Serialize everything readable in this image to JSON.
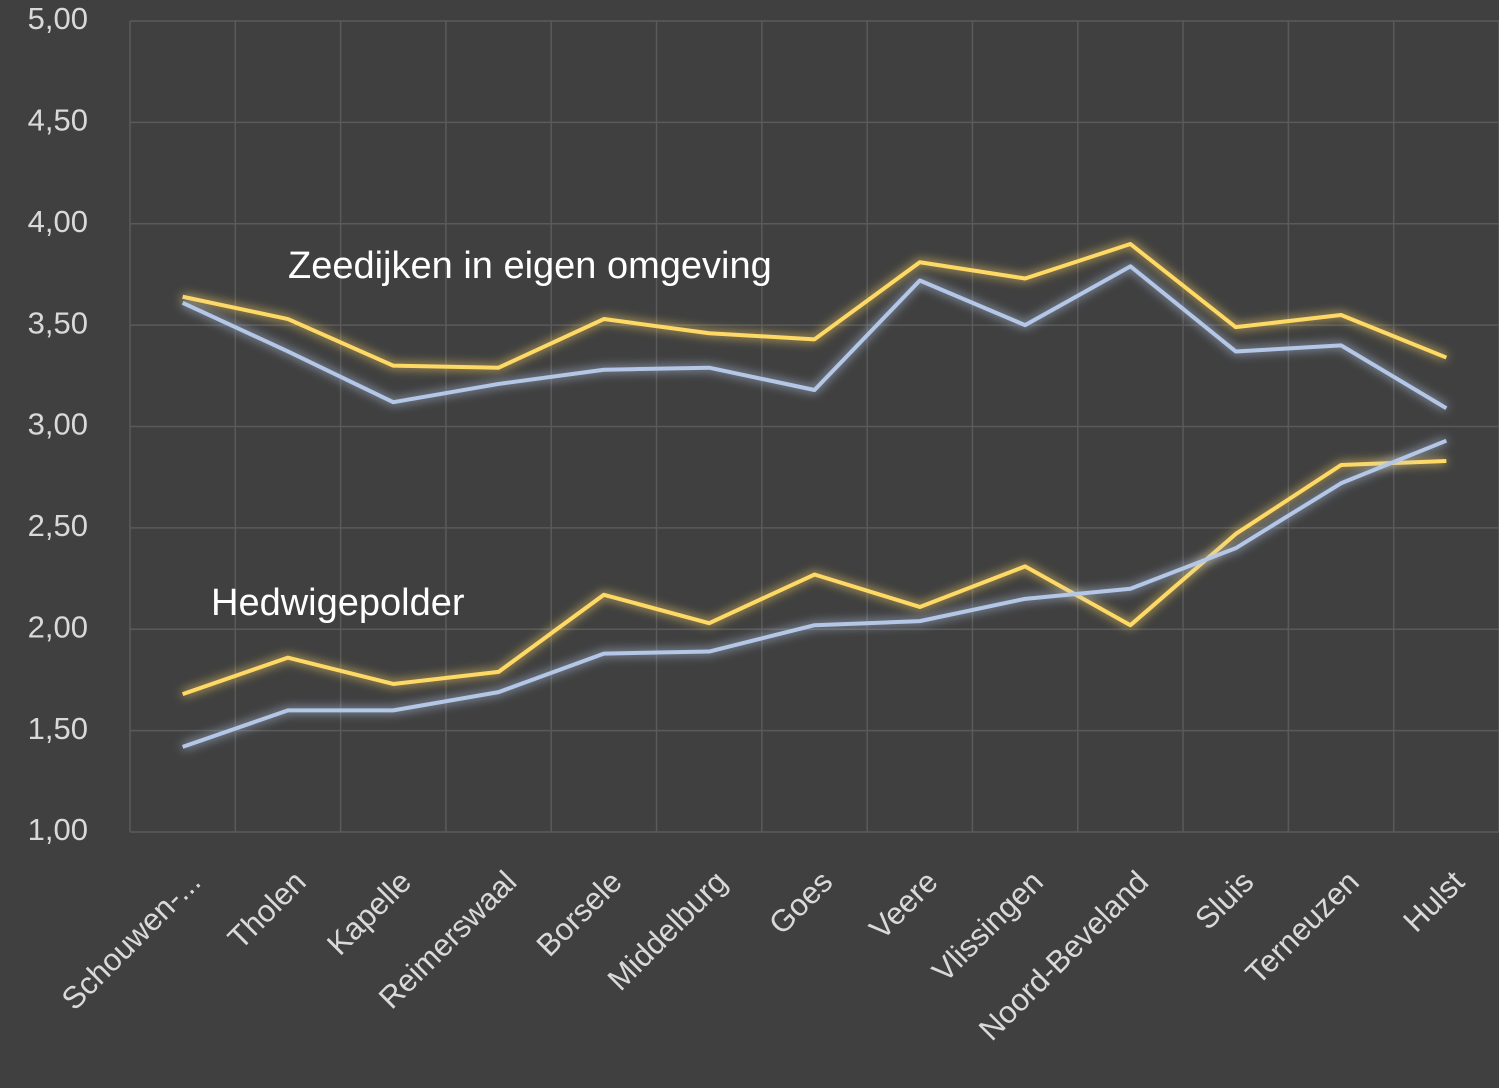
{
  "chart_data": {
    "type": "line",
    "categories": [
      "Schouwen-...",
      "Tholen",
      "Kapelle",
      "Reimerswaal",
      "Borsele",
      "Middelburg",
      "Goes",
      "Veere",
      "Vlissingen",
      "Noord-Beveland",
      "Sluis",
      "Terneuzen",
      "Hulst"
    ],
    "series": [
      {
        "color": "#ffd966",
        "values": [
          3.64,
          3.53,
          3.3,
          3.29,
          3.53,
          3.46,
          3.43,
          3.81,
          3.73,
          3.9,
          3.49,
          3.55,
          3.34
        ]
      },
      {
        "color": "#b4c7e7",
        "values": [
          3.61,
          3.37,
          3.12,
          3.21,
          3.28,
          3.29,
          3.18,
          3.72,
          3.5,
          3.79,
          3.37,
          3.4,
          3.09
        ]
      },
      {
        "color": "#ffd966",
        "values": [
          1.68,
          1.86,
          1.73,
          1.79,
          2.17,
          2.03,
          2.27,
          2.11,
          2.31,
          2.02,
          2.47,
          2.81,
          2.83
        ]
      },
      {
        "color": "#b4c7e7",
        "values": [
          1.42,
          1.6,
          1.6,
          1.69,
          1.88,
          1.89,
          2.02,
          2.04,
          2.15,
          2.2,
          2.4,
          2.72,
          2.93
        ]
      }
    ],
    "annotations": [
      "Zeedijken in eigen omgeving",
      "Hedwigepolder"
    ],
    "ylim": [
      1,
      5
    ],
    "yticks": [
      {
        "value": 1,
        "label": "1,00"
      },
      {
        "value": 1.5,
        "label": "1,50"
      },
      {
        "value": 2,
        "label": "2,00"
      },
      {
        "value": 2.5,
        "label": "2,50"
      },
      {
        "value": 3,
        "label": "3,00"
      },
      {
        "value": 3.5,
        "label": "3,50"
      },
      {
        "value": 4,
        "label": "4,00"
      },
      {
        "value": 4.5,
        "label": "4,50"
      },
      {
        "value": 5,
        "label": "5,00"
      }
    ],
    "grid": true
  }
}
